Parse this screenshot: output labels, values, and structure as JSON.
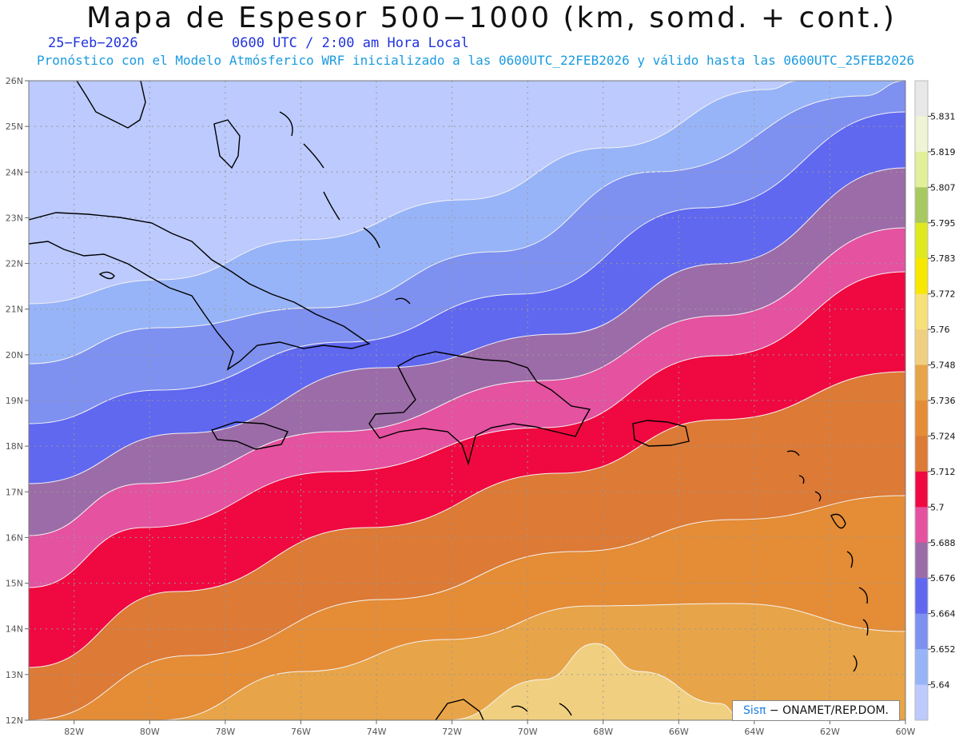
{
  "header": {
    "title": "Mapa de Espesor 500−1000 (km, somd. + cont.)",
    "date": "25−Feb−2026",
    "valid_time": "0600 UTC / 2:00 am Hora Local",
    "subtitle": "Pronóstico con el Modelo Atmósferico WRF inicializado a las 0600UTC_22FEB2026 y válido hasta las  0600UTC_25FEB2026"
  },
  "credit": {
    "logo": "Sisπ",
    "text": " − ONAMET/REP.DOM."
  },
  "axes": {
    "lat_labels": [
      "26N",
      "25N",
      "24N",
      "23N",
      "22N",
      "21N",
      "20N",
      "19N",
      "18N",
      "17N",
      "16N",
      "15N",
      "14N",
      "13N",
      "12N"
    ],
    "lon_labels": [
      "82W",
      "80W",
      "78W",
      "76W",
      "74W",
      "72W",
      "70W",
      "68W",
      "66W",
      "64W",
      "62W",
      "60W"
    ],
    "lat_range": [
      12,
      26
    ],
    "lon_range": [
      -83.2,
      -60
    ],
    "grid": true
  },
  "colorbar": {
    "labels": [
      "5.831",
      "5.819",
      "5.807",
      "5.795",
      "5.783",
      "5.772",
      "5.76",
      "5.748",
      "5.736",
      "5.724",
      "5.712",
      "5.7",
      "5.688",
      "5.676",
      "5.664",
      "5.652",
      "5.64"
    ],
    "colors": [
      "#e8e8e8",
      "#eef4d4",
      "#e2f09a",
      "#a8c860",
      "#e0e820",
      "#f8e800",
      "#f8e078",
      "#f0d080",
      "#e8a448",
      "#e48c36",
      "#dc7a36",
      "#f00840",
      "#e452a0",
      "#9c6ca8",
      "#6068f0",
      "#7e90f0",
      "#98b4f8",
      "#bccafe"
    ]
  },
  "bands": [
    {
      "level": "<5.64",
      "color": "#bccafe"
    },
    {
      "level": "5.64–5.652",
      "color": "#98b4f8"
    },
    {
      "level": "5.652–5.664",
      "color": "#7e90f0"
    },
    {
      "level": "5.664–5.676",
      "color": "#6068f0"
    },
    {
      "level": "5.676–5.688",
      "color": "#9c6ca8"
    },
    {
      "level": "5.688–5.7",
      "color": "#e452a0"
    },
    {
      "level": "5.7–5.712",
      "color": "#f00840"
    },
    {
      "level": "5.712–5.724",
      "color": "#dc7a36"
    },
    {
      "level": "5.724–5.736",
      "color": "#e48c36"
    },
    {
      "level": "5.736–5.748",
      "color": "#e8a448"
    },
    {
      "level": "5.748–5.76",
      "color": "#f0d080"
    }
  ]
}
